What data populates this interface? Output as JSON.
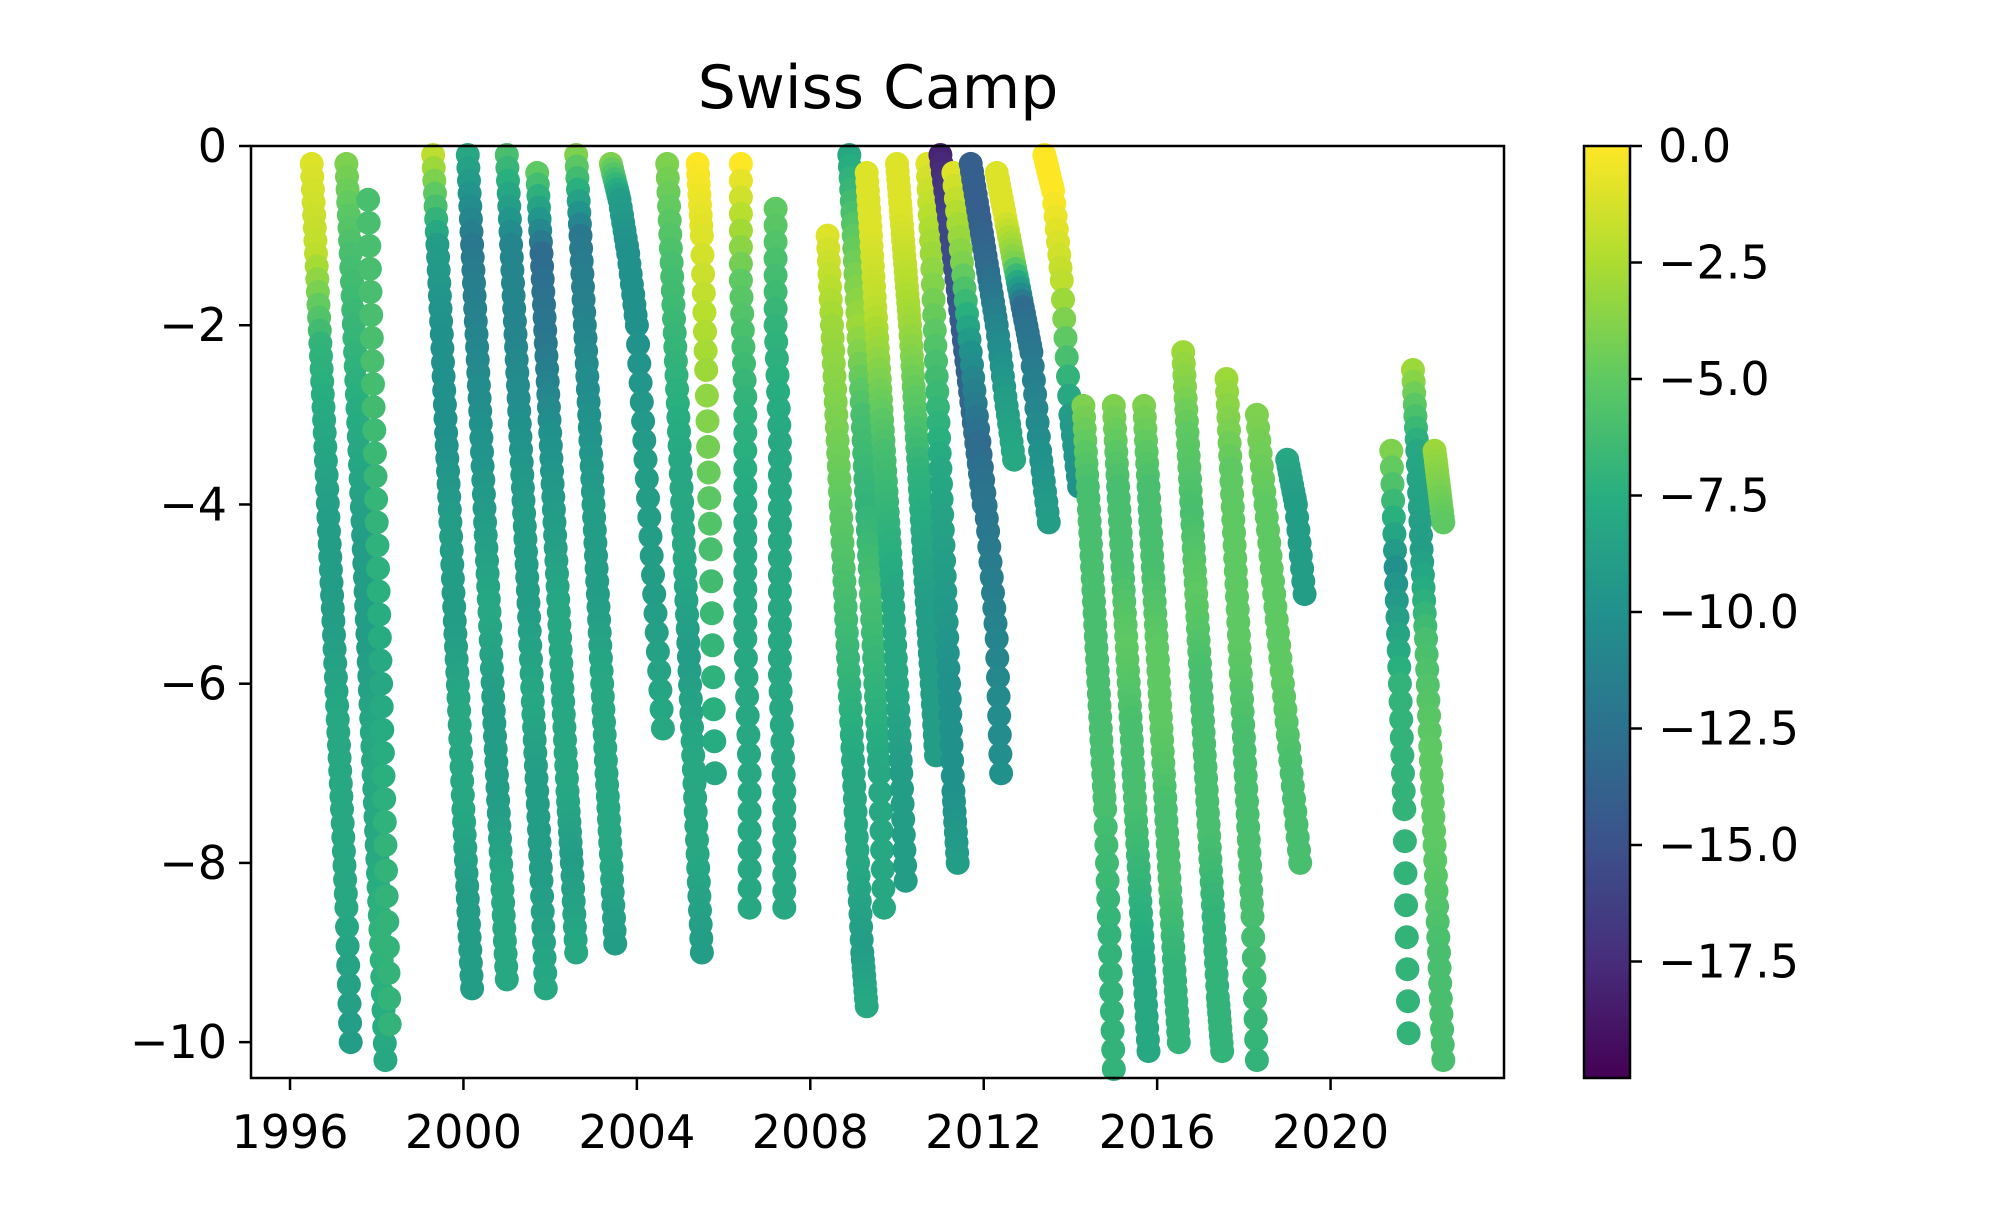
{
  "chart_data": {
    "type": "scatter",
    "title": "Swiss Camp",
    "xlabel": "",
    "ylabel": "",
    "xlim": [
      1995.1,
      2024.0
    ],
    "ylim": [
      -10.4,
      0
    ],
    "x_ticks": [
      1996,
      2000,
      2004,
      2008,
      2012,
      2016,
      2020
    ],
    "x_tick_labels": [
      "1996",
      "2000",
      "2004",
      "2008",
      "2012",
      "2016",
      "2020"
    ],
    "y_ticks": [
      0,
      -2,
      -4,
      -6,
      -8,
      -10
    ],
    "y_tick_labels": [
      "0",
      "−2",
      "−4",
      "−6",
      "−8",
      "−10"
    ],
    "colorbar": {
      "colormap": "viridis",
      "range": [
        -20.0,
        0.0
      ],
      "ticks": [
        0.0,
        -2.5,
        -5.0,
        -7.5,
        -10.0,
        -12.5,
        -15.0,
        -17.5
      ],
      "tick_labels": [
        "0.0",
        "−2.5",
        "−5.0",
        "−7.5",
        "−10.0",
        "−12.5",
        "−15.0",
        "−17.5"
      ]
    },
    "grid": false,
    "legend": "none",
    "marker_color_meaning": "temperature",
    "series": [
      {
        "x": [
          1996.5,
          1996.6,
          1996.7,
          1996.8,
          1996.9,
          1997.0,
          1997.1,
          1997.2,
          1997.3,
          1997.4
        ],
        "y": [
          -0.2,
          -1.2,
          -2.2,
          -3.2,
          -4.3,
          -5.3,
          -6.4,
          -7.4,
          -8.5,
          -10.0
        ],
        "t": [
          -1,
          -2,
          -7,
          -8,
          -9,
          -9,
          -8,
          -8,
          -8,
          -9
        ]
      },
      {
        "x": [
          1997.3,
          1997.4,
          1997.5,
          1997.6,
          1997.7,
          1997.8,
          1997.9,
          1998.0,
          1998.1,
          1998.2
        ],
        "y": [
          -0.2,
          -1.2,
          -2.3,
          -3.4,
          -4.5,
          -5.6,
          -6.7,
          -7.8,
          -8.9,
          -10.2
        ],
        "t": [
          -4,
          -6,
          -7,
          -8,
          -9,
          -9,
          -8,
          -8,
          -7,
          -8
        ]
      },
      {
        "x": [
          1997.8,
          1997.9,
          1998.0,
          1998.1,
          1998.2,
          1998.3
        ],
        "y": [
          -0.6,
          -2.4,
          -4.2,
          -6.0,
          -7.8,
          -9.8
        ],
        "t": [
          -6,
          -6,
          -7,
          -8,
          -7,
          -7
        ]
      },
      {
        "x": [
          1999.3,
          1999.4,
          1999.5,
          1999.6,
          1999.7,
          1999.8,
          1999.9,
          2000.0,
          2000.1,
          2000.2
        ],
        "y": [
          -0.1,
          -1.1,
          -2.1,
          -3.2,
          -4.2,
          -5.3,
          -6.3,
          -7.4,
          -8.4,
          -9.4
        ],
        "t": [
          -2,
          -9,
          -10,
          -10,
          -9,
          -9,
          -8,
          -8,
          -9,
          -9
        ]
      },
      {
        "x": [
          2000.1,
          2000.2,
          2000.3,
          2000.4,
          2000.5,
          2000.6,
          2000.7,
          2000.8,
          2000.9,
          2001.0
        ],
        "y": [
          -0.1,
          -1.1,
          -2.1,
          -3.1,
          -4.2,
          -5.2,
          -6.3,
          -7.3,
          -8.3,
          -9.3
        ],
        "t": [
          -8,
          -12,
          -11,
          -10,
          -9,
          -8,
          -9,
          -9,
          -8,
          -8
        ]
      },
      {
        "x": [
          2001.0,
          2001.1,
          2001.2,
          2001.3,
          2001.4,
          2001.5,
          2001.6,
          2001.7,
          2001.8,
          2001.9
        ],
        "y": [
          -0.1,
          -1.1,
          -2.1,
          -3.1,
          -4.1,
          -5.1,
          -6.2,
          -7.2,
          -8.2,
          -9.4
        ],
        "t": [
          -6,
          -11,
          -11,
          -10,
          -9,
          -9,
          -8,
          -9,
          -9,
          -8
        ]
      },
      {
        "x": [
          2001.7,
          2001.8,
          2001.9,
          2002.0,
          2002.1,
          2002.2,
          2002.3,
          2002.4,
          2002.5,
          2002.6
        ],
        "y": [
          -0.3,
          -1.2,
          -2.2,
          -3.2,
          -4.2,
          -5.2,
          -6.2,
          -7.2,
          -8.0,
          -9.0
        ],
        "t": [
          -5,
          -13,
          -12,
          -10,
          -9,
          -8,
          -8,
          -8,
          -9,
          -8
        ]
      },
      {
        "x": [
          2002.6,
          2002.7,
          2002.8,
          2002.9,
          2003.0,
          2003.1,
          2003.2,
          2003.3,
          2003.4,
          2003.5
        ],
        "y": [
          -0.1,
          -1.0,
          -2.0,
          -3.0,
          -4.0,
          -5.0,
          -6.0,
          -7.0,
          -7.9,
          -8.9
        ],
        "t": [
          -4,
          -12,
          -11,
          -10,
          -9,
          -9,
          -8,
          -8,
          -8,
          -9
        ]
      },
      {
        "x": [
          2003.4,
          2003.6,
          2003.8,
          2004.0,
          2004.2,
          2004.4,
          2004.6
        ],
        "y": [
          -0.2,
          -0.6,
          -1.2,
          -2.0,
          -3.5,
          -5.0,
          -6.5
        ],
        "t": [
          -4,
          -9,
          -10,
          -10,
          -9,
          -9,
          -8
        ]
      },
      {
        "x": [
          2004.7,
          2004.8,
          2004.9,
          2005.0,
          2005.1,
          2005.2,
          2005.3,
          2005.4,
          2005.5
        ],
        "y": [
          -0.2,
          -1.3,
          -2.4,
          -3.5,
          -4.6,
          -5.7,
          -6.8,
          -7.9,
          -9.0
        ],
        "t": [
          -4,
          -6,
          -7,
          -8,
          -8,
          -9,
          -8,
          -8,
          -9
        ]
      },
      {
        "x": [
          2005.4,
          2005.5,
          2005.6,
          2005.7,
          2005.8
        ],
        "y": [
          -0.2,
          -1.0,
          -2.5,
          -4.5,
          -7.0
        ],
        "t": [
          0,
          -1,
          -3,
          -6,
          -8
        ]
      },
      {
        "x": [
          2006.4,
          2006.4,
          2006.5,
          2006.5,
          2006.5,
          2006.6,
          2006.6
        ],
        "y": [
          -0.2,
          -1.5,
          -2.8,
          -4.2,
          -5.5,
          -7.0,
          -8.5
        ],
        "t": [
          0,
          -5,
          -7,
          -8,
          -8,
          -8,
          -8
        ]
      },
      {
        "x": [
          2007.2,
          2007.2,
          2007.3,
          2007.3,
          2007.3,
          2007.4,
          2007.4
        ],
        "y": [
          -0.7,
          -2.0,
          -3.3,
          -4.6,
          -5.9,
          -7.2,
          -8.5
        ],
        "t": [
          -5,
          -7,
          -8,
          -8,
          -8,
          -8,
          -8
        ]
      },
      {
        "x": [
          2008.4,
          2008.5,
          2008.6,
          2008.7,
          2008.8,
          2008.9,
          2009.0,
          2009.1,
          2009.2,
          2009.3
        ],
        "y": [
          -1.0,
          -2.0,
          -3.0,
          -4.0,
          -5.0,
          -6.0,
          -7.0,
          -8.0,
          -9.0,
          -9.6
        ],
        "t": [
          -1,
          -3,
          -4,
          -5,
          -6,
          -7,
          -8,
          -8,
          -9,
          -8
        ]
      },
      {
        "x": [
          2008.9,
          2009.0,
          2009.1,
          2009.2,
          2009.3,
          2009.4,
          2009.5,
          2009.6,
          2009.7
        ],
        "y": [
          -0.1,
          -1.0,
          -2.0,
          -3.0,
          -4.0,
          -5.0,
          -6.0,
          -7.0,
          -8.5
        ],
        "t": [
          -8,
          -5,
          -3,
          -6,
          -7,
          -6,
          -7,
          -8,
          -8
        ]
      },
      {
        "x": [
          2009.3,
          2009.4,
          2009.5,
          2009.6,
          2009.7,
          2009.8,
          2009.9,
          2010.0,
          2010.1,
          2010.2
        ],
        "y": [
          -0.3,
          -1.0,
          -1.8,
          -2.6,
          -3.4,
          -4.2,
          -5.0,
          -6.0,
          -7.0,
          -8.2
        ],
        "t": [
          -1,
          -1,
          -2,
          -4,
          -6,
          -7,
          -8,
          -8,
          -9,
          -9
        ]
      },
      {
        "x": [
          2010.0,
          2010.1,
          2010.2,
          2010.3,
          2010.4,
          2010.5,
          2010.6,
          2010.7,
          2010.8,
          2010.9
        ],
        "y": [
          -0.2,
          -0.8,
          -1.4,
          -2.0,
          -2.8,
          -3.6,
          -4.4,
          -5.2,
          -6.0,
          -6.8
        ],
        "t": [
          -1,
          -1,
          -2,
          -3,
          -5,
          -7,
          -8,
          -9,
          -9,
          -9
        ]
      },
      {
        "x": [
          2010.7,
          2010.8,
          2010.9,
          2011.0,
          2011.1,
          2011.2,
          2011.3,
          2011.4
        ],
        "y": [
          -0.2,
          -1.2,
          -2.4,
          -3.6,
          -4.8,
          -6.0,
          -7.2,
          -8.0
        ],
        "t": [
          -1,
          -3,
          -6,
          -8,
          -9,
          -10,
          -10,
          -9
        ]
      },
      {
        "x": [
          2011.0,
          2011.2,
          2011.4,
          2011.6,
          2011.8,
          2012.0
        ],
        "y": [
          -0.1,
          -0.8,
          -1.6,
          -2.4,
          -3.2,
          -4.0
        ],
        "t": [
          -18,
          -16,
          -15,
          -14,
          -13,
          -12
        ]
      },
      {
        "x": [
          2011.3,
          2011.5,
          2011.7,
          2011.9,
          2012.1,
          2012.3,
          2012.4
        ],
        "y": [
          -0.3,
          -1.3,
          -2.3,
          -3.3,
          -4.3,
          -5.5,
          -7.0
        ],
        "t": [
          -1,
          -4,
          -10,
          -13,
          -12,
          -11,
          -10
        ]
      },
      {
        "x": [
          2011.7,
          2011.9,
          2012.1,
          2012.3,
          2012.5,
          2012.7
        ],
        "y": [
          -0.2,
          -0.8,
          -1.4,
          -2.0,
          -2.8,
          -3.5
        ],
        "t": [
          -14,
          -14,
          -13,
          -11,
          -9,
          -8
        ]
      },
      {
        "x": [
          2012.3,
          2012.5,
          2012.7,
          2012.9,
          2013.1,
          2013.3,
          2013.5
        ],
        "y": [
          -0.3,
          -0.8,
          -1.3,
          -1.8,
          -2.3,
          -3.4,
          -4.2
        ],
        "t": [
          -1,
          -1,
          -4,
          -13,
          -12,
          -10,
          -9
        ]
      },
      {
        "x": [
          2013.4,
          2013.6,
          2013.8,
          2014.0,
          2014.2
        ],
        "y": [
          -0.1,
          -0.5,
          -1.5,
          -3.0,
          -3.8
        ],
        "t": [
          0,
          0,
          -2,
          -9,
          -10
        ]
      },
      {
        "x": [
          2014.3,
          2014.4,
          2014.5,
          2014.6,
          2014.7,
          2014.8,
          2014.9,
          2015.0
        ],
        "y": [
          -2.9,
          -3.8,
          -4.7,
          -5.6,
          -6.5,
          -7.4,
          -8.8,
          -10.3
        ],
        "t": [
          -4,
          -6,
          -6,
          -6,
          -6,
          -6,
          -7,
          -7
        ]
      },
      {
        "x": [
          2015.0,
          2015.1,
          2015.2,
          2015.3,
          2015.4,
          2015.5,
          2015.6,
          2015.7,
          2015.8
        ],
        "y": [
          -2.9,
          -3.8,
          -4.7,
          -5.6,
          -6.5,
          -7.4,
          -8.3,
          -9.2,
          -10.1
        ],
        "t": [
          -4,
          -6,
          -6,
          -5,
          -6,
          -6,
          -7,
          -8,
          -8
        ]
      },
      {
        "x": [
          2015.7,
          2015.8,
          2015.9,
          2016.0,
          2016.1,
          2016.2,
          2016.3,
          2016.4,
          2016.5
        ],
        "y": [
          -2.9,
          -3.8,
          -4.7,
          -5.6,
          -6.5,
          -7.4,
          -8.3,
          -9.2,
          -10.0
        ],
        "t": [
          -4,
          -6,
          -6,
          -5,
          -5,
          -6,
          -6,
          -7,
          -7
        ]
      },
      {
        "x": [
          2016.6,
          2016.7,
          2016.8,
          2016.9,
          2017.0,
          2017.1,
          2017.2,
          2017.3,
          2017.4,
          2017.5
        ],
        "y": [
          -2.3,
          -3.2,
          -4.1,
          -5.0,
          -5.9,
          -6.8,
          -7.7,
          -8.6,
          -9.5,
          -10.1
        ],
        "t": [
          -3,
          -5,
          -6,
          -5,
          -6,
          -6,
          -6,
          -7,
          -7,
          -7
        ]
      },
      {
        "x": [
          2017.6,
          2017.7,
          2017.8,
          2017.9,
          2018.0,
          2018.1,
          2018.2,
          2018.3
        ],
        "y": [
          -2.6,
          -3.6,
          -4.6,
          -5.6,
          -6.6,
          -7.6,
          -8.6,
          -10.2
        ],
        "t": [
          -3,
          -5,
          -5,
          -5,
          -6,
          -6,
          -6,
          -7
        ]
      },
      {
        "x": [
          2018.3,
          2018.5,
          2018.7,
          2018.9,
          2019.1,
          2019.3
        ],
        "y": [
          -3.0,
          -4.0,
          -5.0,
          -6.0,
          -7.0,
          -8.0
        ],
        "t": [
          -4,
          -5,
          -5,
          -5,
          -6,
          -6
        ]
      },
      {
        "x": [
          2019.0,
          2019.2,
          2019.4
        ],
        "y": [
          -3.5,
          -4.0,
          -5.0
        ],
        "t": [
          -8,
          -9,
          -9
        ]
      },
      {
        "x": [
          2021.4,
          2021.5,
          2021.6,
          2021.7,
          2021.8
        ],
        "y": [
          -3.4,
          -4.7,
          -6.0,
          -7.4,
          -9.9
        ],
        "t": [
          -4,
          -10,
          -7,
          -7,
          -7
        ]
      },
      {
        "x": [
          2021.9,
          2022.0,
          2022.1,
          2022.2,
          2022.3,
          2022.4,
          2022.5,
          2022.6
        ],
        "y": [
          -2.5,
          -3.4,
          -4.5,
          -5.5,
          -6.7,
          -7.8,
          -9.0,
          -10.2
        ],
        "t": [
          -3,
          -8,
          -9,
          -6,
          -5,
          -5,
          -6,
          -6
        ]
      },
      {
        "x": [
          2022.4,
          2022.5,
          2022.6
        ],
        "y": [
          -3.4,
          -3.8,
          -4.2
        ],
        "t": [
          -3,
          -4,
          -5
        ]
      }
    ]
  }
}
